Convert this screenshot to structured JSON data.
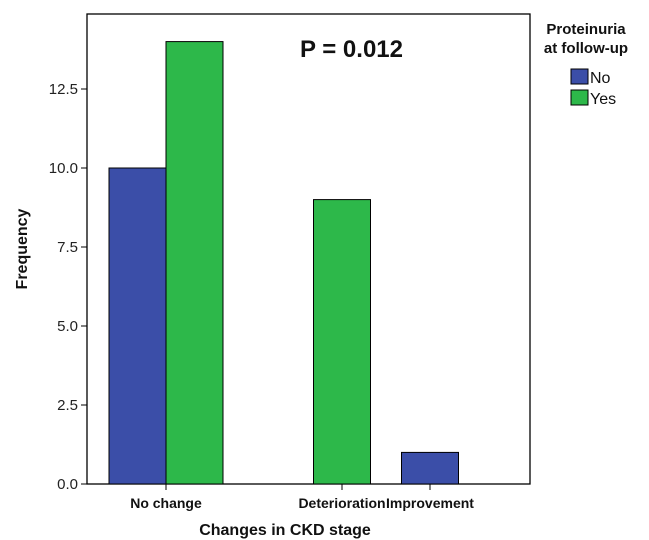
{
  "chart_data": {
    "type": "bar",
    "categories": [
      "No change",
      "Deterioration",
      "Improvement"
    ],
    "series": [
      {
        "name": "No",
        "color": "#3b4ea8",
        "values": [
          10,
          0,
          1
        ]
      },
      {
        "name": "Yes",
        "color": "#2db84a",
        "values": [
          14,
          9,
          0
        ]
      }
    ],
    "xlabel": "Changes in CKD stage",
    "ylabel": "Frequency",
    "ylim": [
      0,
      15
    ],
    "yticks": [
      "0.0",
      "2.5",
      "5.0",
      "7.5",
      "10.0",
      "12.5"
    ],
    "ytick_values": [
      0,
      2.5,
      5,
      7.5,
      10,
      12.5
    ],
    "annotation": "P = 0.012",
    "legend": {
      "title_lines": [
        "Proteinuria",
        "at follow-up"
      ],
      "placement": "right",
      "entries": [
        "No",
        "Yes"
      ]
    },
    "grid": false
  }
}
